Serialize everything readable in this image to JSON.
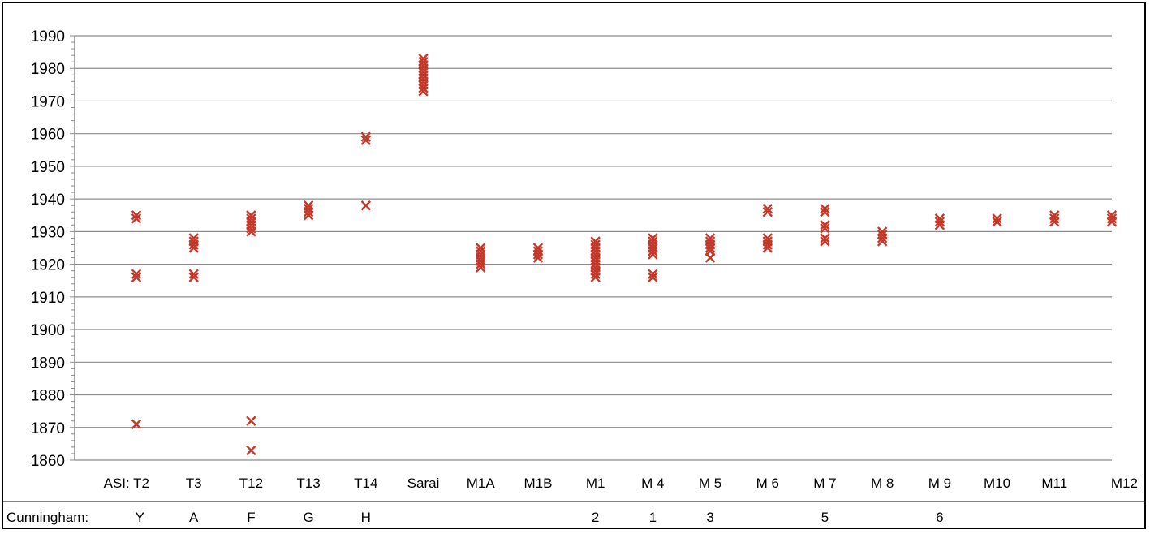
{
  "chart_data": {
    "type": "scatter",
    "marker": "x",
    "marker_color": "#c0392b",
    "ylim": [
      1860,
      1990
    ],
    "yticks": [
      1860,
      1870,
      1880,
      1890,
      1900,
      1910,
      1920,
      1930,
      1940,
      1950,
      1960,
      1970,
      1980,
      1990
    ],
    "grid": true,
    "categories": [
      "ASI: T2",
      "T3",
      "T12",
      "T13",
      "T14",
      "Sarai",
      "M1A",
      "M1B",
      "M1",
      "M 4",
      "M 5",
      "M 6",
      "M 7",
      "M 8",
      "M 9",
      "M10",
      "M11",
      "M12"
    ],
    "secondary_row_title": "Cunningham:",
    "secondary_labels": [
      "Y",
      "A",
      "F",
      "G",
      "H",
      "",
      "",
      "",
      "2",
      "1",
      "3",
      "",
      "5",
      "",
      "6",
      "",
      "",
      ""
    ],
    "points": [
      [
        1934,
        1935,
        1916,
        1917,
        1871
      ],
      [
        1925,
        1926,
        1927,
        1928,
        1916,
        1917
      ],
      [
        1930,
        1931,
        1932,
        1933,
        1934,
        1935,
        1872,
        1863
      ],
      [
        1935,
        1936,
        1937,
        1938
      ],
      [
        1958,
        1959,
        1938
      ],
      [
        1973,
        1974,
        1975,
        1976,
        1977,
        1978,
        1979,
        1980,
        1981,
        1982,
        1983
      ],
      [
        1919,
        1920,
        1921,
        1922,
        1923,
        1924,
        1925
      ],
      [
        1922,
        1923,
        1924,
        1925
      ],
      [
        1916,
        1917,
        1918,
        1919,
        1920,
        1921,
        1922,
        1923,
        1924,
        1925,
        1926,
        1927
      ],
      [
        1923,
        1924,
        1925,
        1926,
        1927,
        1928,
        1916,
        1917
      ],
      [
        1922,
        1924,
        1925,
        1926,
        1927,
        1928
      ],
      [
        1936,
        1937,
        1925,
        1926,
        1927,
        1928
      ],
      [
        1936,
        1937,
        1931,
        1932,
        1927,
        1928
      ],
      [
        1927,
        1928,
        1929,
        1930
      ],
      [
        1932,
        1933,
        1934
      ],
      [
        1933,
        1934
      ],
      [
        1933,
        1934,
        1935
      ],
      [
        1933,
        1934,
        1935
      ]
    ]
  }
}
